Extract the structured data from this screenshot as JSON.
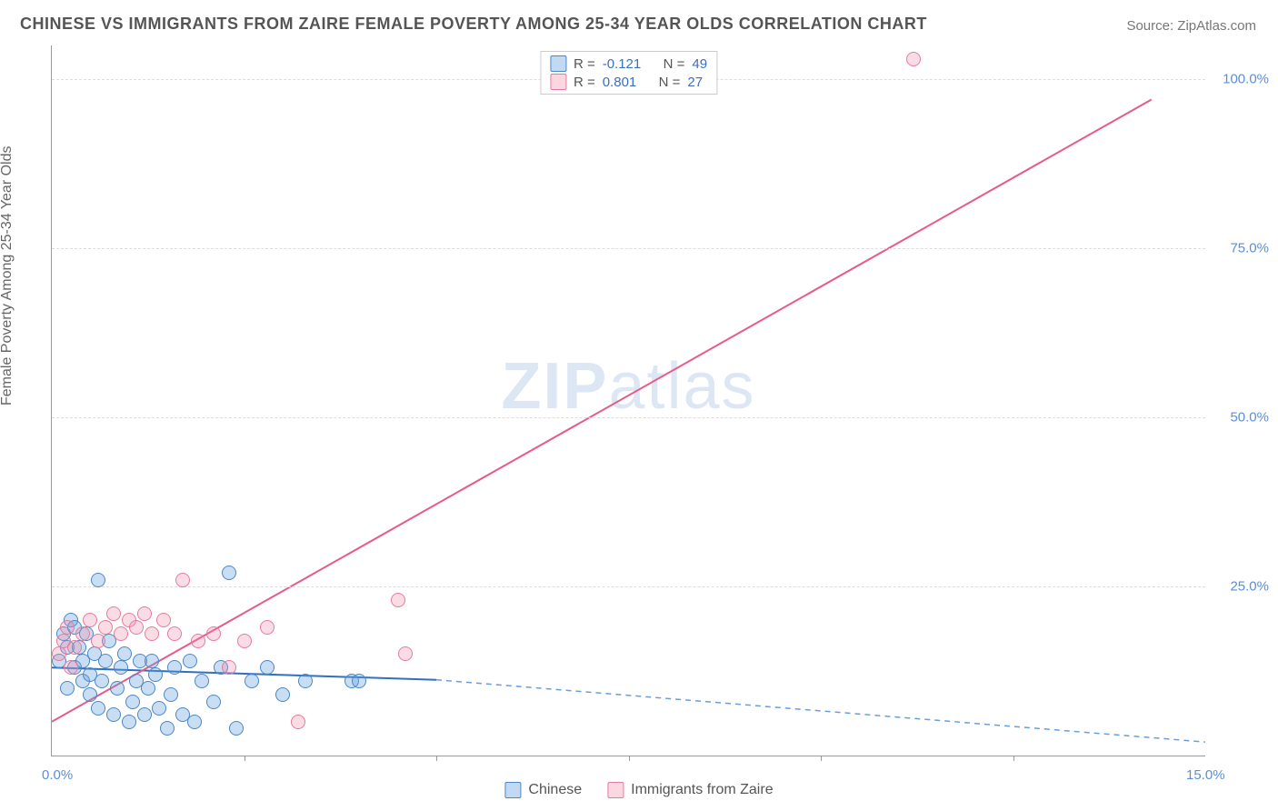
{
  "title": "CHINESE VS IMMIGRANTS FROM ZAIRE FEMALE POVERTY AMONG 25-34 YEAR OLDS CORRELATION CHART",
  "source": "Source: ZipAtlas.com",
  "y_axis_label": "Female Poverty Among 25-34 Year Olds",
  "watermark": "ZIPatlas",
  "chart": {
    "type": "scatter-with-trend",
    "xlim": [
      0,
      15
    ],
    "ylim": [
      0,
      105
    ],
    "x_ticks": [
      0,
      15
    ],
    "x_tick_labels": [
      "0.0%",
      "15.0%"
    ],
    "x_minor_ticks": [
      2.5,
      5,
      7.5,
      10,
      12.5
    ],
    "y_ticks": [
      25,
      50,
      75,
      100
    ],
    "y_tick_labels": [
      "25.0%",
      "50.0%",
      "75.0%",
      "100.0%"
    ],
    "background_color": "#ffffff",
    "grid_color": "#dddddd",
    "axis_color": "#999999",
    "tick_label_color": "#5b8fd6",
    "marker_radius": 8,
    "series": [
      {
        "name": "Chinese",
        "color_fill": "rgba(100,160,220,0.35)",
        "color_stroke": "#4a88c7",
        "R": -0.121,
        "N": 49,
        "trend": {
          "x1": 0,
          "y1": 13.0,
          "x2": 5.0,
          "y2": 11.2,
          "dash_x2": 15,
          "dash_y2": 2.0,
          "solid_color": "#2f6fc4",
          "dash_color": "#6a9ed8",
          "width": 2
        },
        "points": [
          {
            "x": 0.1,
            "y": 14
          },
          {
            "x": 0.15,
            "y": 18
          },
          {
            "x": 0.2,
            "y": 10
          },
          {
            "x": 0.2,
            "y": 16
          },
          {
            "x": 0.25,
            "y": 20
          },
          {
            "x": 0.3,
            "y": 13
          },
          {
            "x": 0.3,
            "y": 19
          },
          {
            "x": 0.35,
            "y": 16
          },
          {
            "x": 0.4,
            "y": 11
          },
          {
            "x": 0.4,
            "y": 14
          },
          {
            "x": 0.45,
            "y": 18
          },
          {
            "x": 0.5,
            "y": 9
          },
          {
            "x": 0.5,
            "y": 12
          },
          {
            "x": 0.55,
            "y": 15
          },
          {
            "x": 0.6,
            "y": 7
          },
          {
            "x": 0.6,
            "y": 26
          },
          {
            "x": 0.65,
            "y": 11
          },
          {
            "x": 0.7,
            "y": 14
          },
          {
            "x": 0.75,
            "y": 17
          },
          {
            "x": 0.8,
            "y": 6
          },
          {
            "x": 0.85,
            "y": 10
          },
          {
            "x": 0.9,
            "y": 13
          },
          {
            "x": 0.95,
            "y": 15
          },
          {
            "x": 1.0,
            "y": 5
          },
          {
            "x": 1.05,
            "y": 8
          },
          {
            "x": 1.1,
            "y": 11
          },
          {
            "x": 1.15,
            "y": 14
          },
          {
            "x": 1.2,
            "y": 6
          },
          {
            "x": 1.25,
            "y": 10
          },
          {
            "x": 1.3,
            "y": 14
          },
          {
            "x": 1.35,
            "y": 12
          },
          {
            "x": 1.4,
            "y": 7
          },
          {
            "x": 1.5,
            "y": 4
          },
          {
            "x": 1.55,
            "y": 9
          },
          {
            "x": 1.6,
            "y": 13
          },
          {
            "x": 1.7,
            "y": 6
          },
          {
            "x": 1.8,
            "y": 14
          },
          {
            "x": 1.85,
            "y": 5
          },
          {
            "x": 1.95,
            "y": 11
          },
          {
            "x": 2.1,
            "y": 8
          },
          {
            "x": 2.2,
            "y": 13
          },
          {
            "x": 2.3,
            "y": 27
          },
          {
            "x": 2.4,
            "y": 4
          },
          {
            "x": 2.6,
            "y": 11
          },
          {
            "x": 2.8,
            "y": 13
          },
          {
            "x": 3.0,
            "y": 9
          },
          {
            "x": 3.3,
            "y": 11
          },
          {
            "x": 3.9,
            "y": 11
          },
          {
            "x": 4.0,
            "y": 11
          }
        ]
      },
      {
        "name": "Immigrants from Zaire",
        "color_fill": "rgba(240,140,170,0.30)",
        "color_stroke": "#e77aa0",
        "R": 0.801,
        "N": 27,
        "trend": {
          "x1": 0,
          "y1": 5.0,
          "x2": 14.3,
          "y2": 97.0,
          "solid_color": "#e85a8a",
          "width": 2
        },
        "points": [
          {
            "x": 0.1,
            "y": 15
          },
          {
            "x": 0.15,
            "y": 17
          },
          {
            "x": 0.2,
            "y": 19
          },
          {
            "x": 0.25,
            "y": 13
          },
          {
            "x": 0.3,
            "y": 16
          },
          {
            "x": 0.4,
            "y": 18
          },
          {
            "x": 0.5,
            "y": 20
          },
          {
            "x": 0.6,
            "y": 17
          },
          {
            "x": 0.7,
            "y": 19
          },
          {
            "x": 0.8,
            "y": 21
          },
          {
            "x": 0.9,
            "y": 18
          },
          {
            "x": 1.0,
            "y": 20
          },
          {
            "x": 1.1,
            "y": 19
          },
          {
            "x": 1.2,
            "y": 21
          },
          {
            "x": 1.3,
            "y": 18
          },
          {
            "x": 1.45,
            "y": 20
          },
          {
            "x": 1.6,
            "y": 18
          },
          {
            "x": 1.7,
            "y": 26
          },
          {
            "x": 1.9,
            "y": 17
          },
          {
            "x": 2.1,
            "y": 18
          },
          {
            "x": 2.3,
            "y": 13
          },
          {
            "x": 2.5,
            "y": 17
          },
          {
            "x": 2.8,
            "y": 19
          },
          {
            "x": 3.2,
            "y": 5
          },
          {
            "x": 4.5,
            "y": 23
          },
          {
            "x": 4.6,
            "y": 15
          },
          {
            "x": 11.2,
            "y": 103
          }
        ]
      }
    ],
    "legend_top": [
      {
        "swatch": "blue",
        "R": "-0.121",
        "N": "49"
      },
      {
        "swatch": "pink",
        "R": "0.801",
        "N": "27"
      }
    ],
    "legend_bottom": [
      {
        "swatch": "blue",
        "label": "Chinese"
      },
      {
        "swatch": "pink",
        "label": "Immigrants from Zaire"
      }
    ]
  }
}
